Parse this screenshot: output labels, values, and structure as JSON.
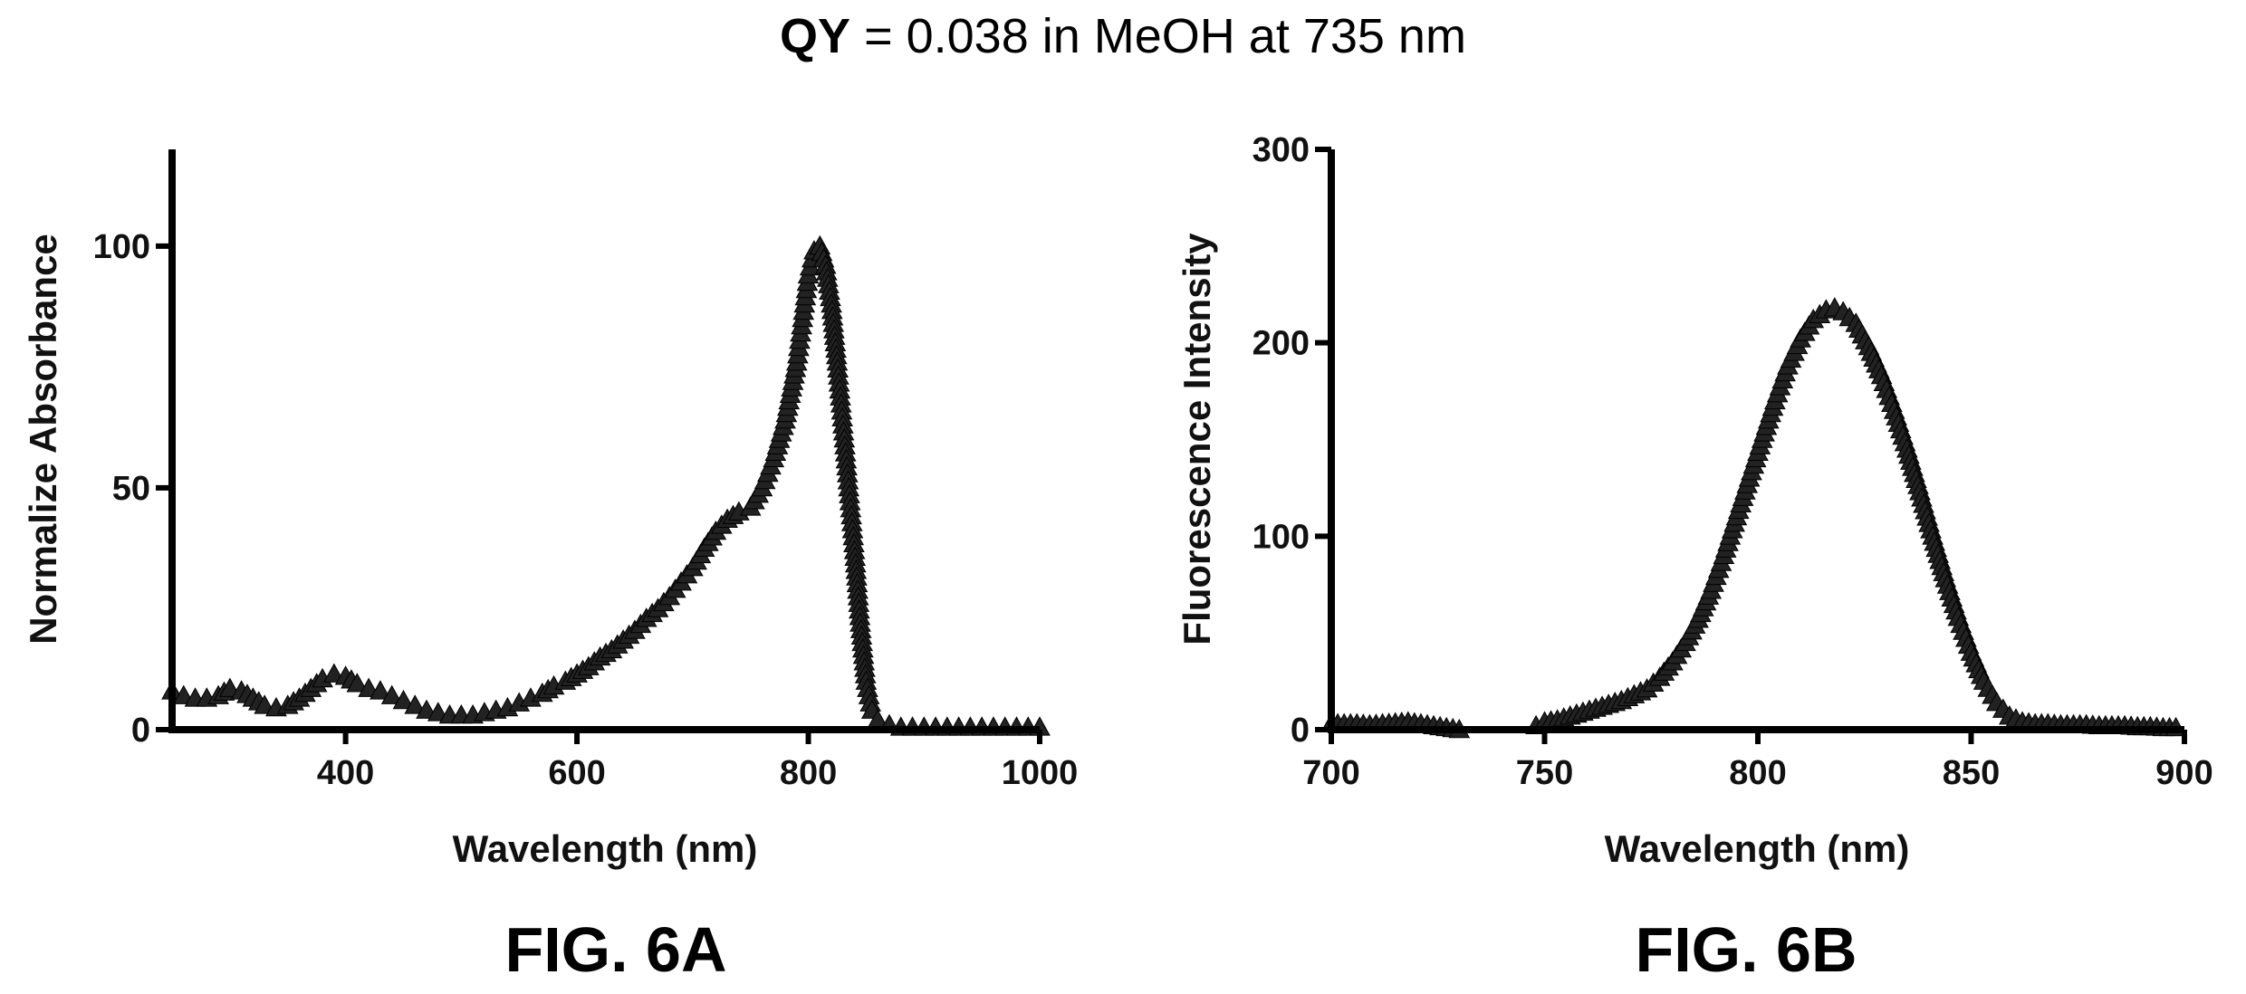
{
  "header": {
    "title_bold": "QY",
    "title_rest": " = 0.038 in MeOH at 735 nm"
  },
  "chart_data": [
    {
      "type": "scatter",
      "caption": "FIG. 6A",
      "xlabel": "Wavelength (nm)",
      "ylabel": "Normalize Absorbance",
      "xlim": [
        250,
        1000
      ],
      "ylim": [
        0,
        120
      ],
      "xticks": [
        400,
        600,
        800,
        1000
      ],
      "yticks": [
        0,
        50,
        100
      ],
      "marker": "triangle",
      "x": [
        250,
        260,
        270,
        280,
        290,
        300,
        310,
        320,
        330,
        340,
        350,
        360,
        370,
        380,
        390,
        400,
        410,
        420,
        430,
        440,
        450,
        460,
        470,
        480,
        490,
        500,
        510,
        520,
        530,
        540,
        550,
        560,
        570,
        580,
        590,
        600,
        610,
        620,
        630,
        640,
        650,
        660,
        670,
        680,
        690,
        700,
        710,
        720,
        730,
        740,
        750,
        760,
        770,
        780,
        790,
        795,
        800,
        805,
        810,
        815,
        820,
        825,
        830,
        835,
        840,
        845,
        850,
        855,
        860,
        870,
        880,
        890,
        900,
        910,
        920,
        930,
        940,
        950,
        960,
        970,
        980,
        990,
        1000
      ],
      "y": [
        8,
        7,
        6.5,
        6.5,
        7,
        8.5,
        8,
        6.5,
        5,
        4.5,
        5,
        6.5,
        8.5,
        10.5,
        11.5,
        11,
        9.5,
        8.5,
        8,
        7,
        6,
        5,
        4,
        3.5,
        3,
        3,
        3,
        3.5,
        4,
        4.5,
        5.5,
        6.5,
        7.5,
        9,
        10,
        11.5,
        13,
        15,
        16.5,
        18.5,
        20.5,
        23,
        25,
        27.5,
        30.5,
        33.5,
        37.5,
        41,
        43.5,
        45,
        46,
        50,
        56,
        64,
        76,
        85,
        94,
        99,
        100,
        96,
        88,
        76,
        63,
        50,
        37,
        22,
        10,
        4,
        2,
        1,
        0.5,
        0.5,
        0.5,
        0.5,
        0.5,
        0.5,
        0.5,
        0.5,
        0.5,
        0.5,
        0.5,
        0.5,
        0.5
      ]
    },
    {
      "type": "scatter",
      "caption": "FIG. 6B",
      "xlabel": "Wavelength (nm)",
      "ylabel": "Fluorescence Intensity",
      "xlim": [
        700,
        900
      ],
      "ylim": [
        0,
        300
      ],
      "xticks": [
        700,
        750,
        800,
        850,
        900
      ],
      "yticks": [
        0,
        100,
        200,
        300
      ],
      "marker": "triangle",
      "x": [
        700,
        703,
        706,
        709,
        712,
        715,
        718,
        721,
        724,
        727,
        730,
        748,
        750,
        753,
        756,
        759,
        762,
        765,
        768,
        771,
        774,
        777,
        780,
        783,
        786,
        789,
        792,
        795,
        798,
        801,
        804,
        807,
        810,
        813,
        816,
        818,
        820,
        823,
        826,
        829,
        832,
        835,
        838,
        841,
        844,
        847,
        850,
        853,
        856,
        859,
        862,
        865,
        868,
        871,
        874,
        877,
        880,
        883,
        886,
        889,
        892,
        895,
        898
      ],
      "y": [
        3,
        3,
        3,
        2.5,
        3,
        3.5,
        4,
        3,
        2,
        1,
        0,
        2,
        4,
        5,
        7,
        9,
        11,
        13,
        15,
        18,
        21,
        27,
        35,
        45,
        57,
        72,
        90,
        110,
        130,
        150,
        170,
        188,
        202,
        212,
        217,
        218,
        216,
        210,
        198,
        183,
        165,
        145,
        123,
        100,
        78,
        58,
        40,
        25,
        14,
        7,
        4,
        3,
        3,
        2.5,
        2.5,
        2.5,
        2,
        2,
        2,
        1.5,
        1.5,
        1,
        1
      ]
    }
  ]
}
